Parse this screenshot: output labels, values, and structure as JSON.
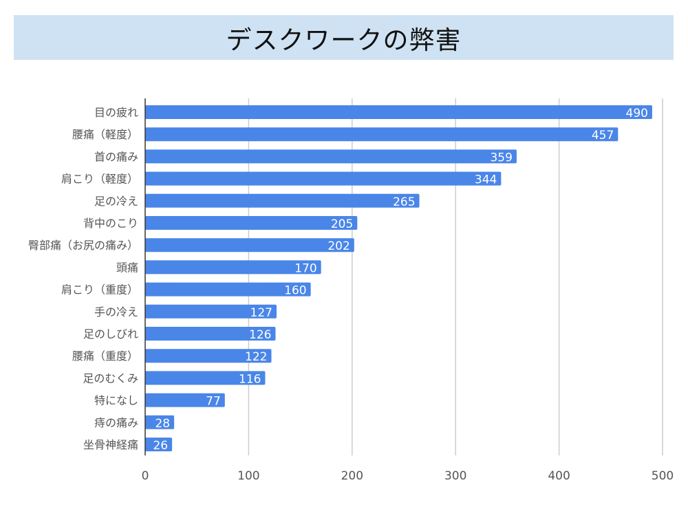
{
  "chart_data": {
    "type": "bar",
    "orientation": "horizontal",
    "title": "デスクワークの弊害",
    "categories": [
      "目の疲れ",
      "腰痛（軽度）",
      "首の痛み",
      "肩こり（軽度）",
      "足の冷え",
      "背中のこり",
      "臀部痛（お尻の痛み）",
      "頭痛",
      "肩こり（重度）",
      "手の冷え",
      "足のしびれ",
      "腰痛（重度）",
      "足のむくみ",
      "特になし",
      "痔の痛み",
      "坐骨神経痛"
    ],
    "values": [
      490,
      457,
      359,
      344,
      265,
      205,
      202,
      170,
      160,
      127,
      126,
      122,
      116,
      77,
      28,
      26
    ],
    "xlim": [
      0,
      500
    ],
    "xticks": [
      0,
      100,
      200,
      300,
      400,
      500
    ],
    "grid": true,
    "data_labels": true,
    "colors": {
      "bar": "#4a86e8",
      "grid": "#cccccc",
      "axis": "#333333",
      "title_bg": "#cfe2f3",
      "label_text": "#555555",
      "data_label_text": "#ffffff"
    }
  }
}
